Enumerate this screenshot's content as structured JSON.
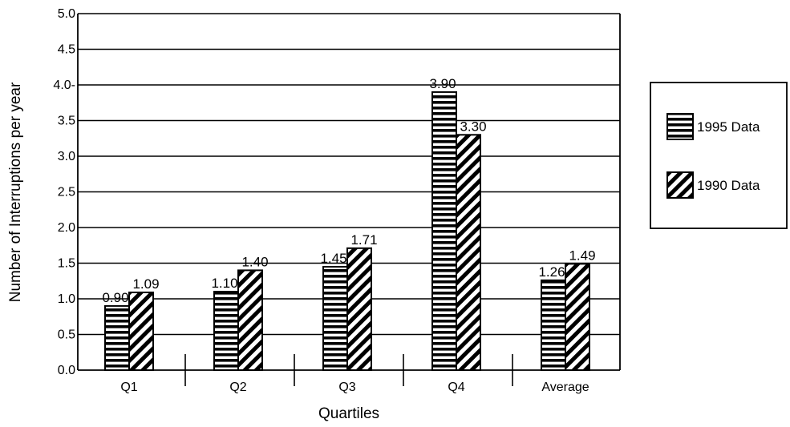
{
  "chart_data": {
    "type": "bar",
    "title": "",
    "xlabel": "Quartiles",
    "ylabel": "Number of Interruptions per year",
    "categories": [
      "Q1",
      "Q2",
      "Q3",
      "Q4",
      "Average"
    ],
    "series": [
      {
        "name": "1995 Data",
        "values": [
          0.9,
          1.1,
          1.45,
          3.9,
          1.26
        ],
        "labels": [
          "0.90",
          "1.10",
          "1.45",
          "3.90",
          "1.26"
        ],
        "pattern": "horizontal-stripes"
      },
      {
        "name": "1990 Data",
        "values": [
          1.09,
          1.4,
          1.71,
          3.3,
          1.49
        ],
        "labels": [
          "1.09",
          "1.40",
          "1.71",
          "3.30",
          "1.49"
        ],
        "pattern": "diagonal-hatch"
      }
    ],
    "ylim": [
      0,
      5.0
    ],
    "yticks": [
      0.0,
      0.5,
      1.0,
      1.5,
      2.0,
      2.5,
      3.0,
      3.5,
      4.0,
      4.5,
      5.0
    ],
    "ytick_labels": [
      "0.0",
      "0.5",
      "1.0",
      "1.5",
      "2.0",
      "2.5",
      "3.0",
      "3.5",
      "4.0-",
      "4.5",
      "5.0"
    ],
    "grid": true,
    "legend_position": "right",
    "colors": {
      "ink": "#000000",
      "background": "#ffffff"
    }
  }
}
